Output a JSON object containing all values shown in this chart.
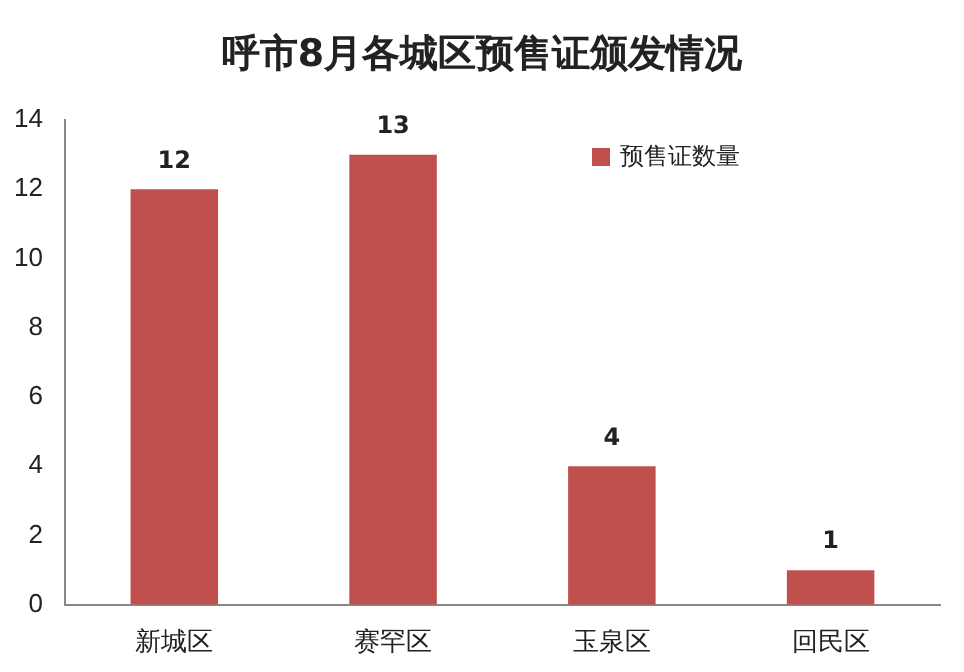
{
  "chart_data": {
    "type": "bar",
    "title": "呼市8月各城区预售证颁发情况",
    "categories": [
      "新城区",
      "赛罕区",
      "玉泉区",
      "回民区"
    ],
    "series": [
      {
        "name": "预售证数量",
        "color": "#c0504d",
        "values": [
          12,
          13,
          4,
          1
        ]
      }
    ],
    "ylim": [
      0,
      14
    ],
    "yticks": [
      0,
      2,
      4,
      6,
      8,
      10,
      12,
      14
    ],
    "grid": false,
    "legend": "top right",
    "data_labels": true
  }
}
